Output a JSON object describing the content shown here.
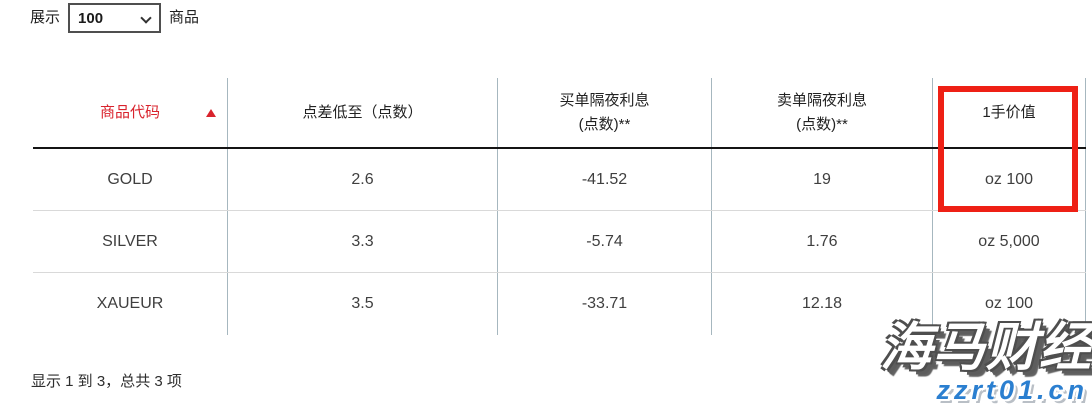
{
  "controls": {
    "show_label": "展示",
    "page_size_value": "100",
    "unit_label": "商品"
  },
  "table": {
    "columns": [
      {
        "label": "商品代码",
        "sorted": "asc"
      },
      {
        "label": "点差低至（点数）"
      },
      {
        "line1": "买单隔夜利息",
        "line2": "(点数)**"
      },
      {
        "line1": "卖单隔夜利息",
        "line2": "(点数)**"
      },
      {
        "label": "1手价值",
        "highlighted": true
      }
    ],
    "rows": [
      [
        "GOLD",
        "2.6",
        "-41.52",
        "19",
        "oz 100"
      ],
      [
        "SILVER",
        "3.3",
        "-5.74",
        "1.76",
        "oz 5,000"
      ],
      [
        "XAUEUR",
        "3.5",
        "-33.71",
        "12.18",
        "oz 100"
      ]
    ]
  },
  "footer": {
    "summary": "显示 1 到 3，总共 3 项"
  },
  "watermark": {
    "brand": "海马财经",
    "site": "zzrt01.cn"
  },
  "colors": {
    "accent_red": "#d9232d",
    "annotation_red": "#ee2015",
    "watermark_blue": "#2b7fd0",
    "grid_line": "#a6b7bf"
  }
}
